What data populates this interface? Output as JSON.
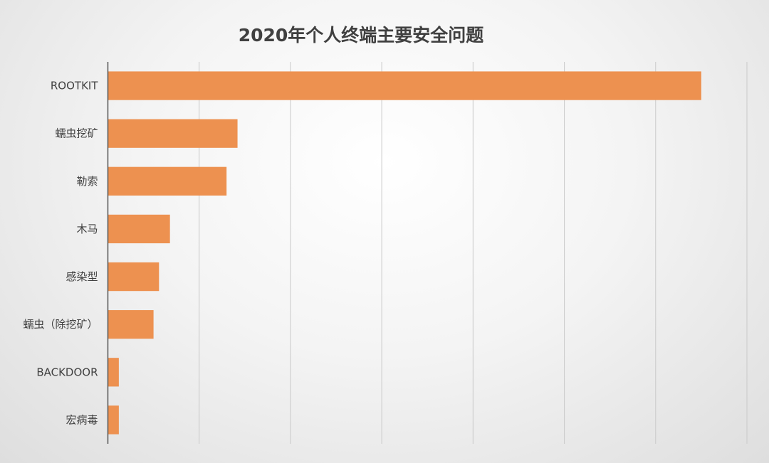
{
  "chart_data": {
    "type": "bar",
    "orientation": "horizontal",
    "title": "2020年个人终端主要安全问题",
    "xlabel": "",
    "ylabel": "",
    "categories": [
      "ROOTKIT",
      "蠕虫挖矿",
      "勒索",
      "木马",
      "感染型",
      "蠕虫（除挖矿）",
      "BACKDOOR",
      "宏病毒"
    ],
    "values": [
      6.5,
      1.42,
      1.3,
      0.68,
      0.56,
      0.5,
      0.12,
      0.12
    ],
    "xlim": [
      0,
      7
    ],
    "x_tick_labels_visible": false,
    "grid": "vertical",
    "legend": "none",
    "colors": {
      "bar": "#ED9150",
      "axis": "#555555",
      "grid": "#C9C9C9",
      "text": "#404040"
    }
  }
}
